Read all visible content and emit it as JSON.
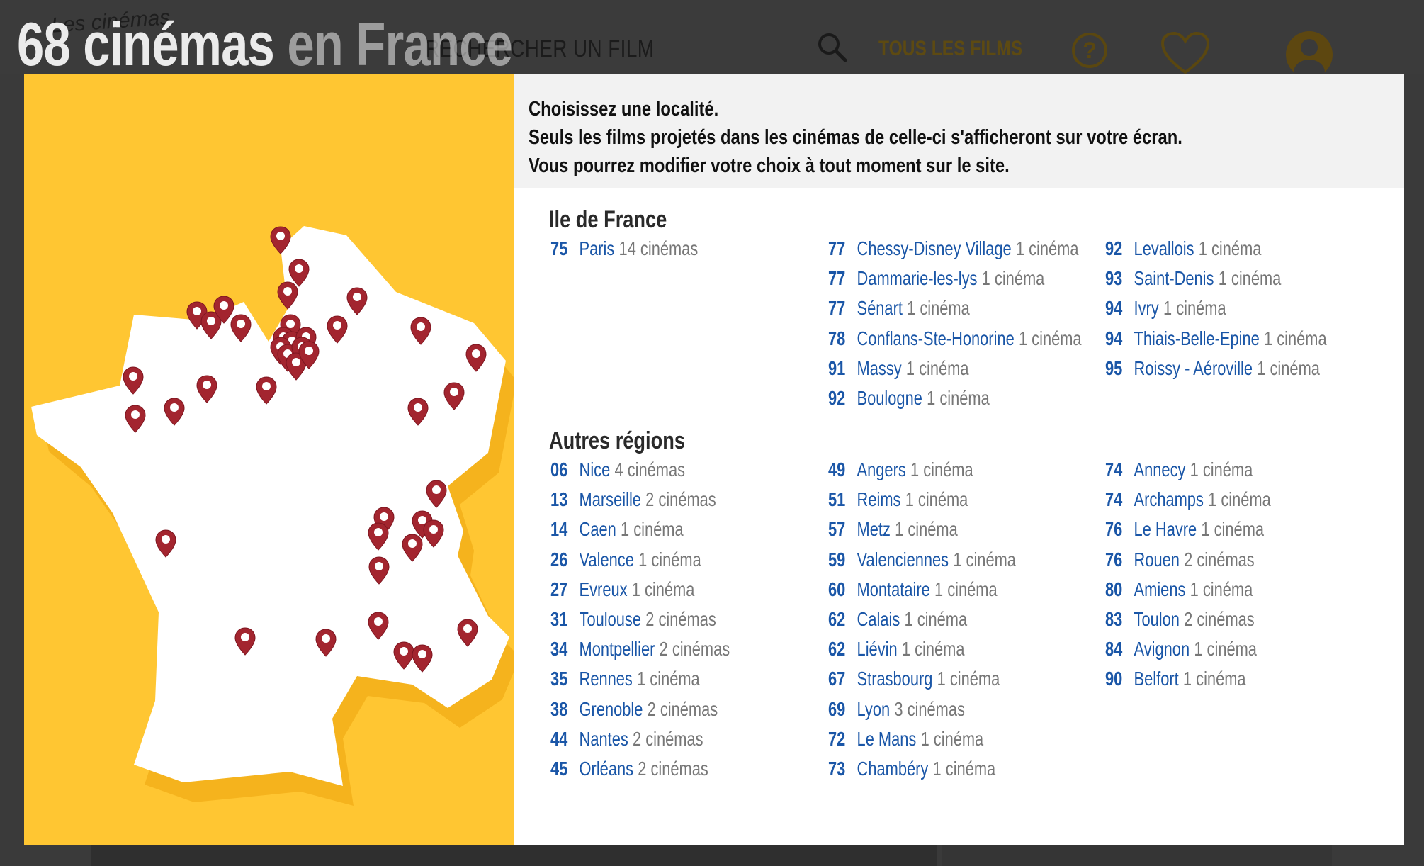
{
  "header": {
    "logo_small": "Les cinémas",
    "search_label": "RECHERCHER UN FILM",
    "all_films_label": "TOUS LES FILMS",
    "help_symbol": "?",
    "icons": [
      "search-icon",
      "help-icon",
      "heart-icon",
      "user-icon"
    ]
  },
  "overlay_title": {
    "count": "68 cinémas",
    "rest": " en France"
  },
  "modal": {
    "intro": [
      "Choisissez une localité.",
      "Seuls les films projetés dans les cinémas de celle-ci s'afficheront sur votre écran.",
      "Vous pourrez modifier votre choix à tout moment sur le site."
    ],
    "colors": {
      "map_bg": "#ffc632",
      "pin": "#a3252f",
      "link": "#1a56a7"
    },
    "sections": [
      {
        "title": "Ile de France",
        "columns": [
          [
            {
              "code": "75",
              "city": "Paris",
              "count": "14 cinémas"
            }
          ],
          [
            {
              "code": "77",
              "city": "Chessy-Disney Village",
              "count": "1 cinéma"
            },
            {
              "code": "77",
              "city": "Dammarie-les-lys",
              "count": "1 cinéma"
            },
            {
              "code": "77",
              "city": "Sénart",
              "count": "1 cinéma"
            },
            {
              "code": "78",
              "city": "Conflans-Ste-Honorine",
              "count": "1 cinéma"
            },
            {
              "code": "91",
              "city": "Massy",
              "count": "1 cinéma"
            },
            {
              "code": "92",
              "city": "Boulogne",
              "count": "1 cinéma"
            }
          ],
          [
            {
              "code": "92",
              "city": "Levallois",
              "count": "1 cinéma"
            },
            {
              "code": "93",
              "city": "Saint-Denis",
              "count": "1 cinéma"
            },
            {
              "code": "94",
              "city": "Ivry",
              "count": "1 cinéma"
            },
            {
              "code": "94",
              "city": "Thiais-Belle-Epine",
              "count": "1 cinéma"
            },
            {
              "code": "95",
              "city": "Roissy - Aéroville",
              "count": "1 cinéma"
            }
          ]
        ]
      },
      {
        "title": "Autres régions",
        "columns": [
          [
            {
              "code": "06",
              "city": "Nice",
              "count": "4 cinémas"
            },
            {
              "code": "13",
              "city": "Marseille",
              "count": "2 cinémas"
            },
            {
              "code": "14",
              "city": "Caen",
              "count": "1 cinéma"
            },
            {
              "code": "26",
              "city": "Valence",
              "count": "1 cinéma"
            },
            {
              "code": "27",
              "city": "Evreux",
              "count": "1 cinéma"
            },
            {
              "code": "31",
              "city": "Toulouse",
              "count": "2 cinémas"
            },
            {
              "code": "34",
              "city": "Montpellier",
              "count": "2 cinémas"
            },
            {
              "code": "35",
              "city": "Rennes",
              "count": "1 cinéma"
            },
            {
              "code": "38",
              "city": "Grenoble",
              "count": "2 cinémas"
            },
            {
              "code": "44",
              "city": "Nantes",
              "count": "2 cinémas"
            },
            {
              "code": "45",
              "city": "Orléans",
              "count": "2 cinémas"
            }
          ],
          [
            {
              "code": "49",
              "city": "Angers",
              "count": "1 cinéma"
            },
            {
              "code": "51",
              "city": "Reims",
              "count": "1 cinéma"
            },
            {
              "code": "57",
              "city": "Metz",
              "count": "1 cinéma"
            },
            {
              "code": "59",
              "city": "Valenciennes",
              "count": "1 cinéma"
            },
            {
              "code": "60",
              "city": "Montataire",
              "count": "1 cinéma"
            },
            {
              "code": "62",
              "city": "Calais",
              "count": "1 cinéma"
            },
            {
              "code": "62",
              "city": "Liévin",
              "count": "1 cinéma"
            },
            {
              "code": "67",
              "city": "Strasbourg",
              "count": "1 cinéma"
            },
            {
              "code": "69",
              "city": "Lyon",
              "count": "3 cinémas"
            },
            {
              "code": "72",
              "city": "Le Mans",
              "count": "1 cinéma"
            },
            {
              "code": "73",
              "city": "Chambéry",
              "count": "1 cinéma"
            }
          ],
          [
            {
              "code": "74",
              "city": "Annecy",
              "count": "1 cinéma"
            },
            {
              "code": "74",
              "city": "Archamps",
              "count": "1 cinéma"
            },
            {
              "code": "76",
              "city": "Le Havre",
              "count": "1 cinéma"
            },
            {
              "code": "76",
              "city": "Rouen",
              "count": "2 cinémas"
            },
            {
              "code": "80",
              "city": "Amiens",
              "count": "1 cinéma"
            },
            {
              "code": "83",
              "city": "Toulon",
              "count": "2 cinémas"
            },
            {
              "code": "84",
              "city": "Avignon",
              "count": "1 cinéma"
            },
            {
              "code": "90",
              "city": "Belfort",
              "count": "1 cinéma"
            }
          ]
        ]
      }
    ]
  }
}
